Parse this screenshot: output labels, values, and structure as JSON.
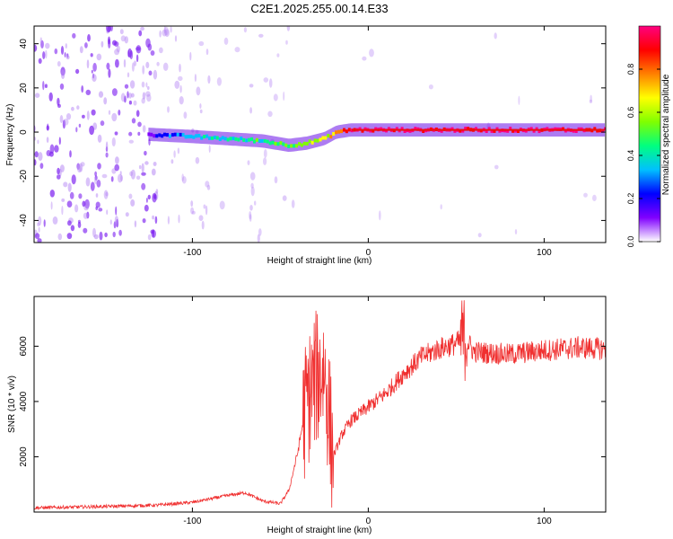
{
  "figure_title": "C2E1.2025.255.00.14.E33",
  "chart_data": [
    {
      "type": "heatmap",
      "title": "C2E1.2025.255.00.14.E33",
      "xlabel": "Height of straight line (km)",
      "ylabel": "Frequency (Hz)",
      "xlim": [
        -190,
        135
      ],
      "ylim": [
        -50,
        48
      ],
      "x_ticks": [
        -100,
        0,
        100
      ],
      "y_ticks": [
        -40,
        -20,
        0,
        20,
        40
      ],
      "colorbar": {
        "label": "Normalized spectral amplitude",
        "range": [
          0.0,
          1.0
        ],
        "ticks": [
          0.0,
          0.2,
          0.4,
          0.6,
          0.8
        ],
        "tick_labels": [
          "0.0",
          "0.2",
          "0.4",
          "0.6",
          "0.8"
        ],
        "colormap": [
          "#ffffff",
          "#8000ff",
          "#0000ff",
          "#00c0ff",
          "#00ff80",
          "#80ff00",
          "#ffff00",
          "#ff8000",
          "#ff0000",
          "#ff0080"
        ]
      },
      "ridge": {
        "description_values_only": true,
        "x": [
          -125,
          -100,
          -80,
          -60,
          -45,
          -35,
          -25,
          -18,
          -10,
          0,
          20,
          60,
          100,
          135
        ],
        "freq": [
          -1,
          -2,
          -3,
          -4,
          -6,
          -5,
          -3,
          0,
          1,
          1,
          1,
          1,
          1,
          1
        ],
        "amplitude": [
          0.15,
          0.35,
          0.4,
          0.45,
          0.5,
          0.55,
          0.6,
          0.75,
          0.9,
          1.0,
          1.0,
          1.0,
          1.0,
          1.0
        ]
      },
      "noise_regions": [
        {
          "x": [
            -190,
            -120
          ],
          "density": 0.8,
          "amplitude": 0.3
        },
        {
          "x": [
            -120,
            -90
          ],
          "density": 0.35,
          "amplitude": 0.12
        },
        {
          "x": [
            -90,
            -70
          ],
          "density": 0.05,
          "amplitude": 0.05
        },
        {
          "x": [
            -70,
            -45
          ],
          "density": 0.25,
          "amplitude": 0.1
        },
        {
          "x": [
            -45,
            135
          ],
          "density": 0.02,
          "amplitude": 0.05
        }
      ]
    },
    {
      "type": "line",
      "xlabel": "Height of straight line (km)",
      "ylabel": "SNR (10 * v/v)",
      "xlim": [
        -190,
        135
      ],
      "ylim": [
        0,
        7800
      ],
      "x_ticks": [
        -100,
        0,
        100
      ],
      "y_ticks": [
        2000,
        4000,
        6000
      ],
      "series": [
        {
          "name": "SNR",
          "color": "#f03030",
          "x": [
            -190,
            -150,
            -120,
            -100,
            -80,
            -70,
            -60,
            -50,
            -45,
            -40,
            -35,
            -30,
            -25,
            -20,
            -15,
            -10,
            0,
            10,
            20,
            30,
            40,
            50,
            55,
            60,
            80,
            100,
            120,
            135
          ],
          "y": [
            150,
            200,
            250,
            350,
            600,
            700,
            400,
            300,
            800,
            2200,
            4000,
            4800,
            5200,
            2000,
            2800,
            3300,
            3800,
            4300,
            5000,
            5600,
            5900,
            6100,
            6300,
            5800,
            5700,
            5850,
            5950,
            5900
          ]
        }
      ],
      "spikes": [
        {
          "x": [
            -37,
            -20
          ],
          "amplitude": 2500
        },
        {
          "x": [
            52,
            56
          ],
          "amplitude": 1600
        }
      ]
    }
  ]
}
